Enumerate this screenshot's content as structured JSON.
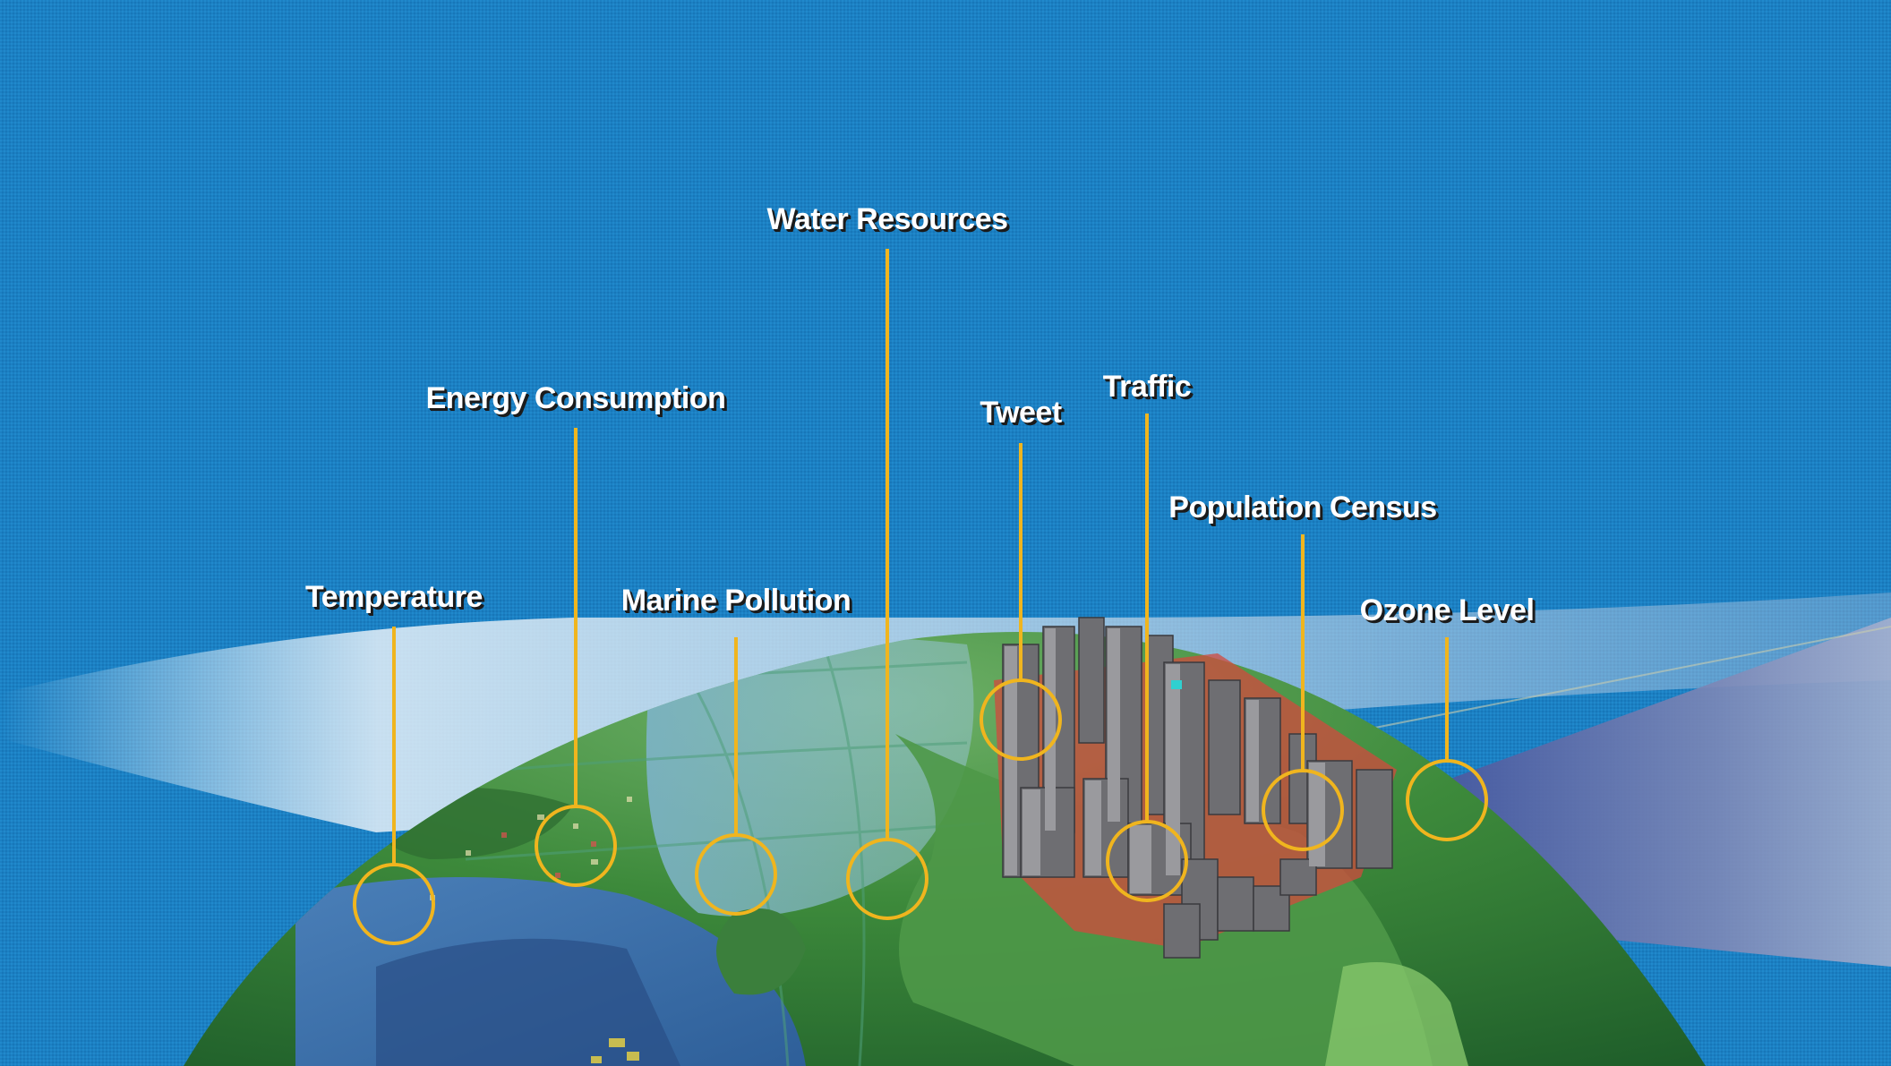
{
  "labels": {
    "temperature": "Temperature",
    "energy": "Energy Consumption",
    "marine": "Marine Pollution",
    "water": "Water Resources",
    "tweet": "Tweet",
    "traffic": "Traffic",
    "population": "Population Census",
    "ozone": "Ozone Level"
  },
  "colors": {
    "background": "#1c80c3",
    "callout": "#f0b51e",
    "label_text": "#ffffff",
    "land": "#3f8a3a",
    "ocean": "#5b8fc0"
  }
}
